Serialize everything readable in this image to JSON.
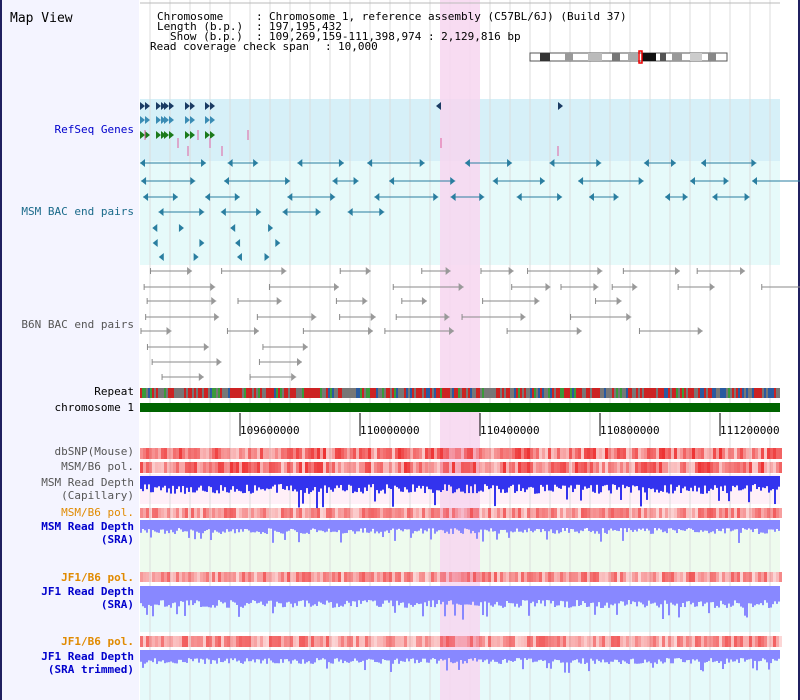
{
  "title": "Map View",
  "header": {
    "chromosome_label": "Chromosome",
    "chromosome_value": "Chromosome 1, reference assembly (C57BL/6J) (Build 37)",
    "length_label": "Length (b.p.)",
    "length_value": "197,195,432",
    "show_label": "Show (b.p.)",
    "show_value": "109,269,159-111,398,974 : 2,129,816 bp",
    "span_label": "Read coverage check span",
    "span_value": "10,000"
  },
  "tracks": {
    "refseq": "RefSeq Genes",
    "msm_bac": "MSM BAC end pairs",
    "b6n_bac": "B6N BAC end pairs",
    "repeat": "Repeat",
    "chromosome": "chromosome 1",
    "dbsnp": "dbSNP(Mouse)",
    "msm_b6_pol": "MSM/B6 pol.",
    "msm_depth_cap_1": "MSM Read Depth",
    "msm_depth_cap_2": "(Capillary)",
    "msm_b6_pol_2": "MSM/B6 pol.",
    "msm_depth_sra_1": "MSM Read Depth",
    "msm_depth_sra_2": "(SRA)",
    "jf1_b6_pol": "JF1/B6 pol.",
    "jf1_depth_sra_1": "JF1 Read Depth",
    "jf1_depth_sra_2": "(SRA)",
    "jf1_b6_pol_2": "JF1/B6 pol.",
    "jf1_depth_trim_1": "JF1 Read Depth",
    "jf1_depth_trim_2": "(SRA trimmed)"
  },
  "axis_ticks": [
    "109600000",
    "110000000",
    "110400000",
    "110800000",
    "111200000"
  ],
  "colors": {
    "refseq_bg": "#d6f0f8",
    "bac_bg": "#e6fafa",
    "highlight": "#f7d6f0",
    "gene_dark": "#1a3b63",
    "gene_mid": "#3a8cb4",
    "gene_green": "#1b7a1b",
    "msm_bac": "#2a7ea0",
    "b6n_bac": "#8a8a8a",
    "chromosome": "#006400",
    "pol_red": "#ee3333",
    "depth_blue": "#3333ee",
    "depth_light": "#8888ff",
    "label_blue": "#0000cc",
    "label_teal": "#1a6a8a",
    "label_orange": "#e08a00",
    "label_gray": "#555555"
  }
}
